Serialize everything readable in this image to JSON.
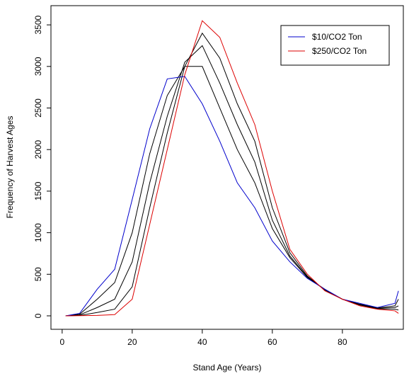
{
  "chart_data": {
    "type": "line",
    "x_label": "Stand Age (Years)",
    "y_label": "Frequency of Harvest Ages",
    "x": [
      1,
      5,
      10,
      15,
      20,
      25,
      30,
      35,
      40,
      45,
      50,
      55,
      60,
      65,
      70,
      75,
      80,
      85,
      90,
      95,
      96
    ],
    "series": [
      {
        "color": "#000000",
        "values": [
          0,
          20,
          200,
          400,
          1000,
          1950,
          2650,
          3000,
          3000,
          2500,
          2000,
          1600,
          1050,
          700,
          460,
          320,
          200,
          140,
          95,
          120,
          200
        ]
      },
      {
        "color": "#000000",
        "values": [
          0,
          12,
          100,
          200,
          650,
          1600,
          2400,
          3050,
          3250,
          2800,
          2300,
          1850,
          1150,
          720,
          470,
          310,
          200,
          135,
          90,
          100,
          120
        ]
      },
      {
        "color": "#000000",
        "values": [
          0,
          5,
          40,
          80,
          350,
          1300,
          2200,
          3000,
          3400,
          3100,
          2550,
          2100,
          1300,
          760,
          480,
          310,
          200,
          130,
          85,
          80,
          70
        ]
      },
      {
        "name": "$10/CO2 Ton",
        "color": "#0000cc",
        "values": [
          0,
          30,
          320,
          560,
          1400,
          2250,
          2850,
          2880,
          2550,
          2100,
          1600,
          1300,
          900,
          650,
          450,
          320,
          200,
          150,
          100,
          150,
          300
        ]
      },
      {
        "name": "$250/CO2 Ton",
        "color": "#dd0000",
        "values": [
          0,
          2,
          5,
          15,
          200,
          1100,
          2000,
          2900,
          3550,
          3350,
          2800,
          2300,
          1500,
          800,
          500,
          300,
          200,
          120,
          80,
          60,
          30
        ]
      }
    ],
    "xlim": [
      -3.2,
      97.4
    ],
    "xticks": [
      0,
      20,
      40,
      60,
      80
    ],
    "ylim": [
      -162,
      3731
    ],
    "yticks": [
      0,
      500,
      1000,
      1500,
      2000,
      2500,
      3000,
      3500
    ],
    "legend": "top-right"
  }
}
